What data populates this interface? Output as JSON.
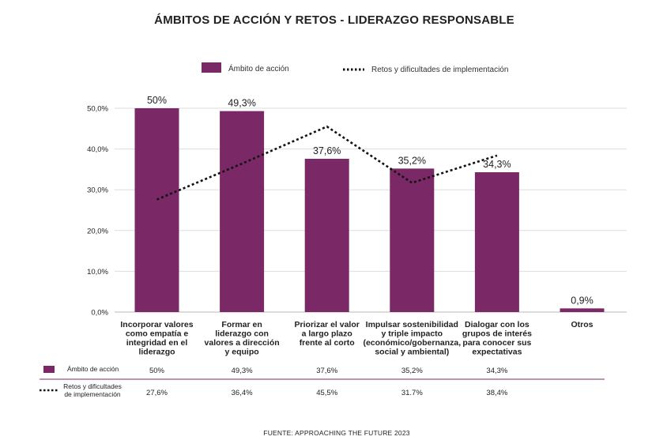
{
  "chart_data": {
    "type": "bar",
    "title": "ÁMBITOS DE ACCIÓN Y RETOS - LIDERAZGO RESPONSABLE",
    "categories": [
      [
        "Incorporar valores",
        "como empatía e",
        "integridad en el",
        "liderazgo"
      ],
      [
        "Formar en",
        "liderazgo con",
        "valores a dirección",
        "y equipo"
      ],
      [
        "Priorizar el valor",
        "a largo plazo",
        "frente al corto"
      ],
      [
        "Impulsar sostenibilidad",
        "y triple impacto",
        "(económico/gobernanza,",
        "social y ambiental)"
      ],
      [
        "Dialogar con los",
        "grupos de interés",
        "para conocer sus",
        "expectativas"
      ],
      [
        "Otros"
      ]
    ],
    "series": [
      {
        "name": "Ámbito de acción",
        "kind": "bar",
        "color": "#7b2866",
        "values": [
          50.0,
          49.3,
          37.6,
          35.2,
          34.3,
          0.9
        ],
        "labels": [
          "50%",
          "49,3%",
          "37,6%",
          "35,2%",
          "34,3%",
          "0,9%"
        ],
        "table_values": [
          "50%",
          "49,3%",
          "37,6%",
          "35,2%",
          "34,3%",
          ""
        ]
      },
      {
        "name": "Retos y dificultades de implementación",
        "table_name": [
          "Retos y dificultades",
          "de implementación"
        ],
        "kind": "line",
        "style": "dotted",
        "color": "#111111",
        "values": [
          27.6,
          36.4,
          45.5,
          31.7,
          38.4,
          null
        ],
        "table_values": [
          "27,6%",
          "36,4%",
          "45,5%",
          "31.7%",
          "38,4%",
          ""
        ]
      }
    ],
    "yticks": [
      "0,0%",
      "10,0%",
      "20,0%",
      "30,0%",
      "40,0%",
      "50,0%"
    ],
    "ylim": [
      0,
      50
    ],
    "grid": true,
    "legend": "top"
  },
  "source": "FUENTE: APPROACHING THE FUTURE 2023"
}
